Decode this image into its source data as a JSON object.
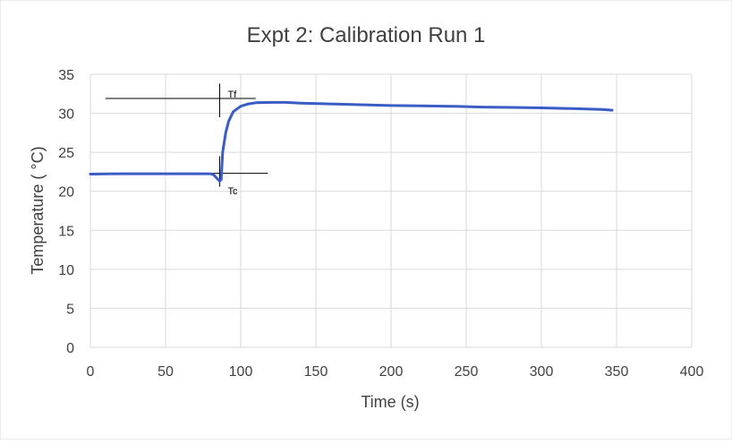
{
  "chart_data": {
    "type": "line",
    "title": "Expt 2: Calibration Run 1",
    "xlabel": "Time (s)",
    "ylabel": "Temperature ( °C)",
    "xlim": [
      0,
      400
    ],
    "ylim": [
      0,
      35
    ],
    "x_ticks": [
      0,
      50,
      100,
      150,
      200,
      250,
      300,
      350,
      400
    ],
    "y_ticks": [
      0,
      5,
      10,
      15,
      20,
      25,
      30,
      35
    ],
    "grid": true,
    "legend": "none",
    "series": [
      {
        "color": "#3a5cc4",
        "points": [
          [
            0,
            22.2
          ],
          [
            20,
            22.25
          ],
          [
            40,
            22.25
          ],
          [
            60,
            22.25
          ],
          [
            80,
            22.25
          ],
          [
            82,
            22.1
          ],
          [
            84,
            21.7
          ],
          [
            86,
            21.3
          ],
          [
            87,
            21.5
          ],
          [
            88,
            25.0
          ],
          [
            90,
            27.5
          ],
          [
            92,
            29.0
          ],
          [
            95,
            30.2
          ],
          [
            100,
            30.9
          ],
          [
            105,
            31.2
          ],
          [
            110,
            31.35
          ],
          [
            120,
            31.4
          ],
          [
            130,
            31.4
          ],
          [
            140,
            31.3
          ],
          [
            160,
            31.2
          ],
          [
            180,
            31.1
          ],
          [
            200,
            31.0
          ],
          [
            220,
            30.95
          ],
          [
            240,
            30.9
          ],
          [
            260,
            30.8
          ],
          [
            280,
            30.75
          ],
          [
            300,
            30.7
          ],
          [
            320,
            30.6
          ],
          [
            340,
            30.5
          ],
          [
            347,
            30.4
          ]
        ]
      }
    ],
    "annotations": [
      {
        "label": "Tf",
        "x": 86,
        "y": 32.0,
        "hline_x": [
          10,
          110
        ],
        "hline_y": 31.9,
        "vline_x": 86,
        "vline_y": [
          29.5,
          33.8
        ]
      },
      {
        "label": "Tc",
        "x": 86,
        "y": 21.0,
        "hline_x": [
          60,
          118
        ],
        "hline_y": 22.3,
        "vline_x": 86,
        "vline_y": [
          20.6,
          24.5
        ]
      }
    ]
  }
}
